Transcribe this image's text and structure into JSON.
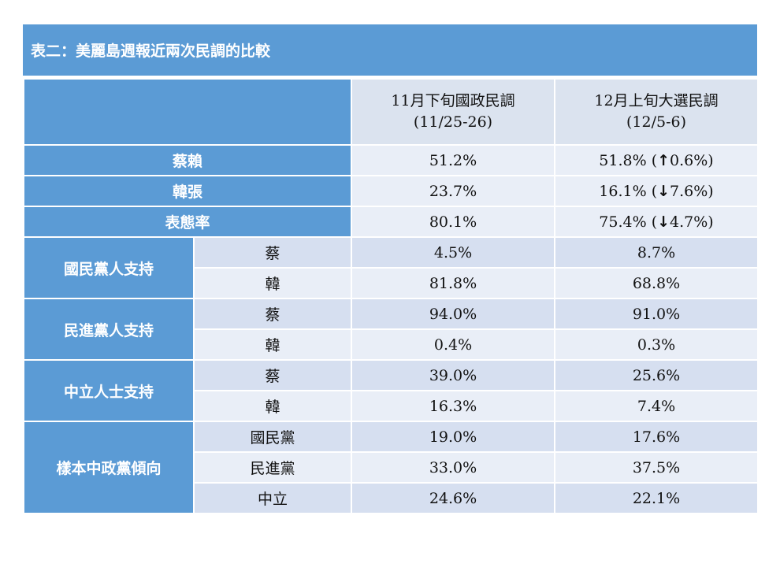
{
  "title": "表二：美麗島週報近兩次民調的比較",
  "columns": [
    {
      "line1": "11月下旬國政民調",
      "line2": "(11/25-26)"
    },
    {
      "line1": "12月上旬大選民調",
      "line2": "(12/5-6)"
    }
  ],
  "main_rows": [
    {
      "label": "蔡賴",
      "v1": "51.2%",
      "v2": "51.8%",
      "paren_open": "(",
      "arrow": "↑",
      "delta": "0.6%)",
      "arrow_icon": "arrow-up-icon"
    },
    {
      "label": "韓張",
      "v1": "23.7%",
      "v2": "16.1%",
      "paren_open": "(",
      "arrow": "↓",
      "delta": "7.6%)",
      "arrow_icon": "arrow-down-icon"
    },
    {
      "label": "表態率",
      "v1": "80.1%",
      "v2": "75.4%",
      "paren_open": "(",
      "arrow": "↓",
      "delta": "4.7%)",
      "arrow_icon": "arrow-down-icon"
    }
  ],
  "groups": [
    {
      "label": "國民黨人支持",
      "rows": [
        {
          "sub": "蔡",
          "v1": "4.5%",
          "v2": "8.7%"
        },
        {
          "sub": "韓",
          "v1": "81.8%",
          "v2": "68.8%"
        }
      ]
    },
    {
      "label": "民進黨人支持",
      "rows": [
        {
          "sub": "蔡",
          "v1": "94.0%",
          "v2": "91.0%"
        },
        {
          "sub": "韓",
          "v1": "0.4%",
          "v2": "0.3%"
        }
      ]
    },
    {
      "label": "中立人士支持",
      "rows": [
        {
          "sub": "蔡",
          "v1": "39.0%",
          "v2": "25.6%"
        },
        {
          "sub": "韓",
          "v1": "16.3%",
          "v2": "7.4%"
        }
      ]
    },
    {
      "label": "樣本中政黨傾向",
      "rows": [
        {
          "sub": "國民黨",
          "v1": "19.0%",
          "v2": "17.6%"
        },
        {
          "sub": "民進黨",
          "v1": "33.0%",
          "v2": "37.5%"
        },
        {
          "sub": "中立",
          "v1": "24.6%",
          "v2": "22.1%"
        }
      ]
    }
  ],
  "colors": {
    "header_blue": "#5b9bd5",
    "row_dark": "#d6dff0",
    "row_light": "#e9eef7"
  }
}
